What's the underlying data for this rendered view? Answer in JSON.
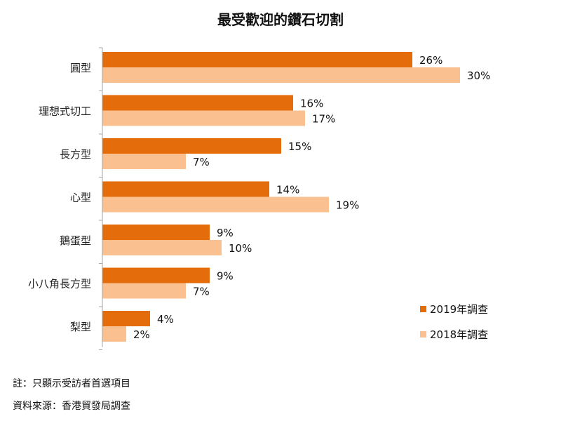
{
  "chart_data": {
    "type": "bar",
    "orientation": "horizontal",
    "title": "最受歡迎的鑽石切割",
    "categories": [
      "圓型",
      "理想式切工",
      "長方型",
      "心型",
      "鵝蛋型",
      "小八角長方型",
      "梨型"
    ],
    "series": [
      {
        "name": "2019年調查",
        "color": "#E46C0A",
        "values": [
          26,
          16,
          15,
          14,
          9,
          9,
          4
        ],
        "labels": [
          "26%",
          "16%",
          "15%",
          "14%",
          "9%",
          "9%",
          "4%"
        ]
      },
      {
        "name": "2018年調查",
        "color": "#FAC090",
        "values": [
          30,
          17,
          7,
          19,
          10,
          7,
          2
        ],
        "labels": [
          "30%",
          "17%",
          "7%",
          "19%",
          "10%",
          "7%",
          "2%"
        ]
      }
    ],
    "xlim": [
      0,
      35
    ],
    "grid": false,
    "legend_position": "bottom-right"
  },
  "footer": {
    "note": "註：只顯示受訪者首選項目",
    "source": "資料來源：香港貿發局調查"
  }
}
